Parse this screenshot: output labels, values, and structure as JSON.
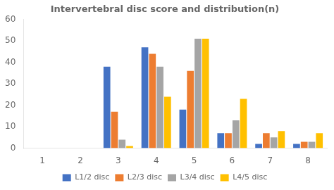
{
  "chart_data": {
    "type": "bar",
    "title": "Intervertebral disc score and distribution(n)",
    "categories": [
      1,
      2,
      3,
      4,
      5,
      6,
      7,
      8
    ],
    "series": [
      {
        "name": "L1/2 disc",
        "color": "#4472C4",
        "values": [
          0,
          0,
          38,
          47,
          18,
          7,
          2,
          2
        ]
      },
      {
        "name": "L2/3 disc",
        "color": "#ED7D31",
        "values": [
          0,
          0,
          17,
          44,
          36,
          7,
          7,
          3
        ]
      },
      {
        "name": "L3/4 disc",
        "color": "#A5A5A5",
        "values": [
          0,
          0,
          4,
          38,
          51,
          13,
          5,
          3
        ]
      },
      {
        "name": "L4/5 disc",
        "color": "#FFC000",
        "values": [
          0,
          0,
          1,
          24,
          51,
          23,
          8,
          7
        ]
      }
    ],
    "ylim": [
      0,
      60
    ],
    "yticks": [
      0,
      10,
      20,
      30,
      40,
      50,
      60
    ],
    "grid": false,
    "legend": "bottom"
  }
}
